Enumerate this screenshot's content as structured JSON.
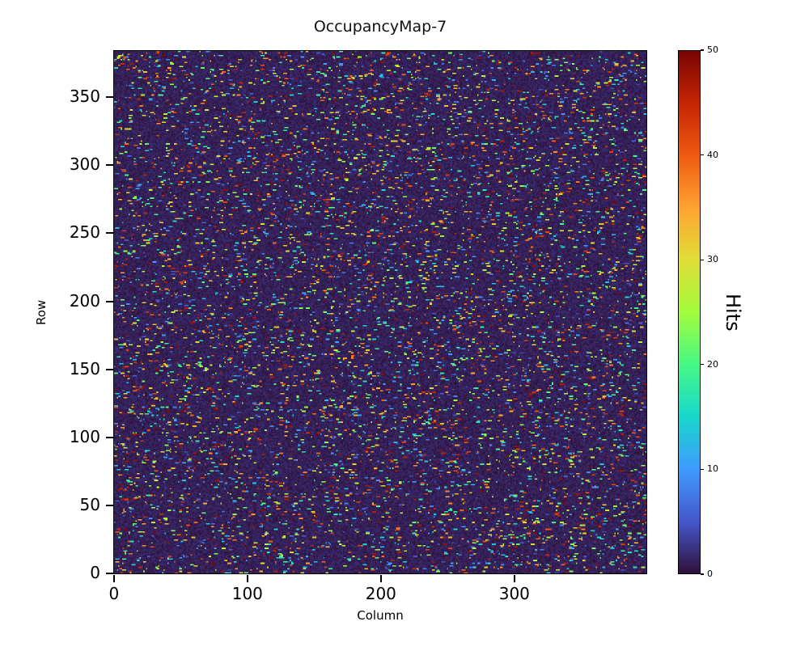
{
  "figure": {
    "title": "OccupancyMap-7",
    "xlabel": "Column",
    "ylabel": "Row",
    "colorbar_label": "Hits",
    "x_ticks": [
      0,
      100,
      200,
      300
    ],
    "y_ticks": [
      0,
      50,
      100,
      150,
      200,
      250,
      300,
      350
    ],
    "colorbar_ticks": [
      0,
      10,
      20,
      30,
      40,
      50
    ]
  },
  "chart_data": {
    "type": "heatmap",
    "title": "OccupancyMap-7",
    "xlabel": "Column",
    "ylabel": "Row",
    "colorbar_label": "Hits",
    "x_range": [
      0,
      400
    ],
    "y_range": [
      0,
      385
    ],
    "value_range": [
      0,
      50
    ],
    "colormap": "turbo",
    "colormap_stops": [
      "#30123b",
      "#4458cb",
      "#3e9bfe",
      "#18d7cc",
      "#46f884",
      "#a2fc3c",
      "#e1dd37",
      "#fea331",
      "#ef5a11",
      "#c42503",
      "#7a0403"
    ],
    "description": "Dense grid of ~400x385 cells; background uniformly near 0 hits (dark purple) with sparse random single-cell/short-run hits spanning the full 0-50 range (blue, cyan, green, yellow, orange, red speckles).",
    "background_value": 1,
    "hit_probability": 0.05,
    "hit_run_max": 3,
    "hit_value_range": [
      3,
      50
    ],
    "seed": 7
  }
}
